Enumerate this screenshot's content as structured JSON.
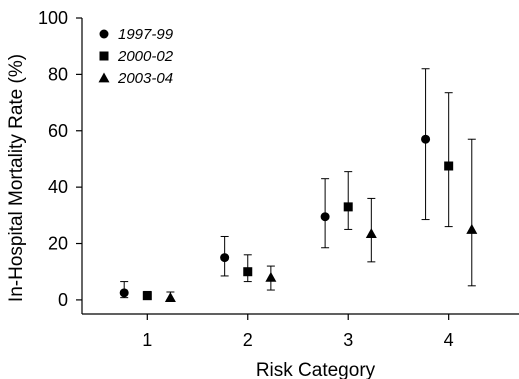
{
  "chart_data": {
    "type": "scatter",
    "title": "",
    "xlabel": "Risk Category",
    "ylabel": "In-Hospital Mortality Rate (%)",
    "categories": [
      "1",
      "2",
      "3",
      "4"
    ],
    "xlim": [
      0.35,
      4.7
    ],
    "ylim": [
      -5,
      100
    ],
    "yticks": [
      0,
      20,
      40,
      60,
      80,
      100
    ],
    "grid": false,
    "legend_position": "top-left",
    "error_bars": true,
    "series": [
      {
        "name": "1997-99",
        "marker": "circle",
        "color": "#000000",
        "x": [
          0.77,
          1.77,
          2.77,
          3.77
        ],
        "y": [
          2.5,
          15,
          29.5,
          57
        ],
        "lower": [
          0.8,
          8.5,
          18.5,
          28.5
        ],
        "upper": [
          6.5,
          22.5,
          43,
          82
        ]
      },
      {
        "name": "2000-02",
        "marker": "square",
        "color": "#000000",
        "x": [
          1.0,
          2.0,
          3.0,
          4.0
        ],
        "y": [
          1.5,
          10,
          33,
          47.5
        ],
        "lower": [
          0.2,
          6.5,
          25,
          26
        ],
        "upper": [
          3,
          16,
          45.5,
          73.5
        ]
      },
      {
        "name": "2003-04",
        "marker": "triangle",
        "color": "#000000",
        "x": [
          1.23,
          2.23,
          3.23,
          4.23
        ],
        "y": [
          0.8,
          8,
          23.5,
          25
        ],
        "lower": [
          0.1,
          3.5,
          13.5,
          5
        ],
        "upper": [
          2.8,
          12,
          36,
          57
        ]
      }
    ]
  }
}
